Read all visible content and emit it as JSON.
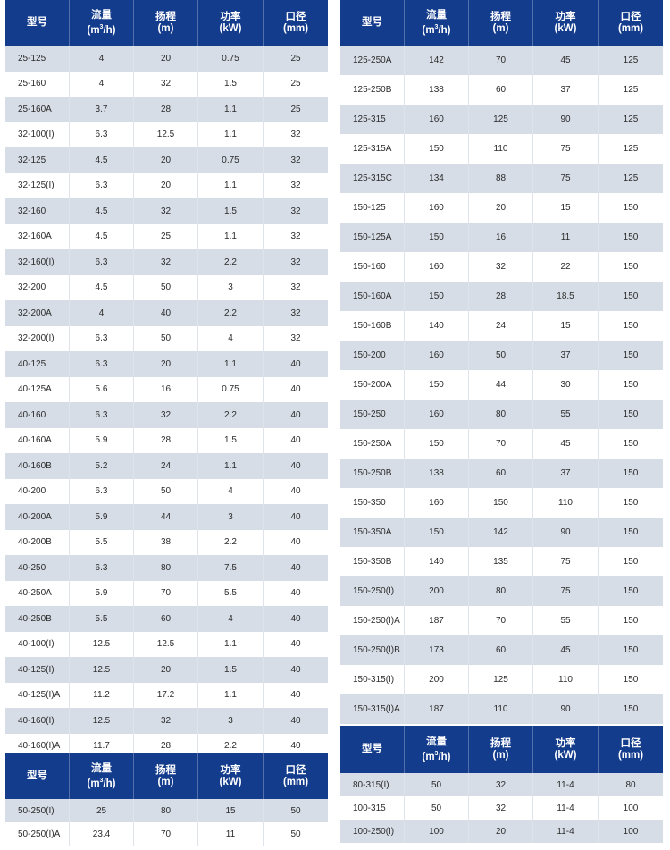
{
  "headers": {
    "model": "型号",
    "flow": "流量",
    "flow_unit_pre": "(m",
    "flow_unit_sup": "3",
    "flow_unit_post": "/h)",
    "head": "扬程",
    "head_unit": "(m)",
    "power": "功率",
    "power_unit": "(kW)",
    "bore": "口径",
    "bore_unit": "(mm)"
  },
  "left_table": [
    [
      "25-125",
      "4",
      "20",
      "0.75",
      "25"
    ],
    [
      "25-160",
      "4",
      "32",
      "1.5",
      "25"
    ],
    [
      "25-160A",
      "3.7",
      "28",
      "1.1",
      "25"
    ],
    [
      "32-100(I)",
      "6.3",
      "12.5",
      "1.1",
      "32"
    ],
    [
      "32-125",
      "4.5",
      "20",
      "0.75",
      "32"
    ],
    [
      "32-125(I)",
      "6.3",
      "20",
      "1.1",
      "32"
    ],
    [
      "32-160",
      "4.5",
      "32",
      "1.5",
      "32"
    ],
    [
      "32-160A",
      "4.5",
      "25",
      "1.1",
      "32"
    ],
    [
      "32-160(I)",
      "6.3",
      "32",
      "2.2",
      "32"
    ],
    [
      "32-200",
      "4.5",
      "50",
      "3",
      "32"
    ],
    [
      "32-200A",
      "4",
      "40",
      "2.2",
      "32"
    ],
    [
      "32-200(I)",
      "6.3",
      "50",
      "4",
      "32"
    ],
    [
      "40-125",
      "6.3",
      "20",
      "1.1",
      "40"
    ],
    [
      "40-125A",
      "5.6",
      "16",
      "0.75",
      "40"
    ],
    [
      "40-160",
      "6.3",
      "32",
      "2.2",
      "40"
    ],
    [
      "40-160A",
      "5.9",
      "28",
      "1.5",
      "40"
    ],
    [
      "40-160B",
      "5.2",
      "24",
      "1.1",
      "40"
    ],
    [
      "40-200",
      "6.3",
      "50",
      "4",
      "40"
    ],
    [
      "40-200A",
      "5.9",
      "44",
      "3",
      "40"
    ],
    [
      "40-200B",
      "5.5",
      "38",
      "2.2",
      "40"
    ],
    [
      "40-250",
      "6.3",
      "80",
      "7.5",
      "40"
    ],
    [
      "40-250A",
      "5.9",
      "70",
      "5.5",
      "40"
    ],
    [
      "40-250B",
      "5.5",
      "60",
      "4",
      "40"
    ],
    [
      "40-100(I)",
      "12.5",
      "12.5",
      "1.1",
      "40"
    ],
    [
      "40-125(I)",
      "12.5",
      "20",
      "1.5",
      "40"
    ],
    [
      "40-125(I)A",
      "11.2",
      "17.2",
      "1.1",
      "40"
    ],
    [
      "40-160(I)",
      "12.5",
      "32",
      "3",
      "40"
    ],
    [
      "40-160(I)A",
      "11.7",
      "28",
      "2.2",
      "40"
    ]
  ],
  "left_table_2": [
    [
      "50-250(I)",
      "25",
      "80",
      "15",
      "50"
    ],
    [
      "50-250(I)A",
      "23.4",
      "70",
      "11",
      "50"
    ]
  ],
  "right_table": [
    [
      "125-250A",
      "142",
      "70",
      "45",
      "125"
    ],
    [
      "125-250B",
      "138",
      "60",
      "37",
      "125"
    ],
    [
      "125-315",
      "160",
      "125",
      "90",
      "125"
    ],
    [
      "125-315A",
      "150",
      "110",
      "75",
      "125"
    ],
    [
      "125-315C",
      "134",
      "88",
      "75",
      "125"
    ],
    [
      "150-125",
      "160",
      "20",
      "15",
      "150"
    ],
    [
      "150-125A",
      "150",
      "16",
      "11",
      "150"
    ],
    [
      "150-160",
      "160",
      "32",
      "22",
      "150"
    ],
    [
      "150-160A",
      "150",
      "28",
      "18.5",
      "150"
    ],
    [
      "150-160B",
      "140",
      "24",
      "15",
      "150"
    ],
    [
      "150-200",
      "160",
      "50",
      "37",
      "150"
    ],
    [
      "150-200A",
      "150",
      "44",
      "30",
      "150"
    ],
    [
      "150-250",
      "160",
      "80",
      "55",
      "150"
    ],
    [
      "150-250A",
      "150",
      "70",
      "45",
      "150"
    ],
    [
      "150-250B",
      "138",
      "60",
      "37",
      "150"
    ],
    [
      "150-350",
      "160",
      "150",
      "110",
      "150"
    ],
    [
      "150-350A",
      "150",
      "142",
      "90",
      "150"
    ],
    [
      "150-350B",
      "140",
      "135",
      "75",
      "150"
    ],
    [
      "150-250(I)",
      "200",
      "80",
      "75",
      "150"
    ],
    [
      "150-250(I)A",
      "187",
      "70",
      "55",
      "150"
    ],
    [
      "150-250(I)B",
      "173",
      "60",
      "45",
      "150"
    ],
    [
      "150-315(I)",
      "200",
      "125",
      "110",
      "150"
    ],
    [
      "150-315(I)A",
      "187",
      "110",
      "90",
      "150"
    ]
  ],
  "right_table_2": [
    [
      "80-315(I)",
      "50",
      "32",
      "11-4",
      "80"
    ],
    [
      "100-315",
      "50",
      "32",
      "11-4",
      "100"
    ],
    [
      "100-250(I)",
      "100",
      "20",
      "11-4",
      "100"
    ]
  ]
}
